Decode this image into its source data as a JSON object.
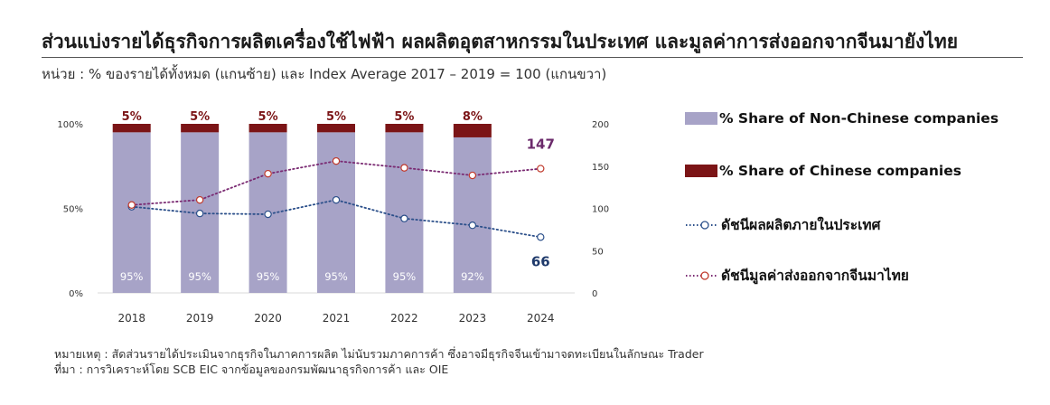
{
  "title": "ส่วนแบ่งรายได้ธุรกิจการผลิตเครื่องใช้ไฟฟ้า ผลผลิตอุตสาหกรรมในประเทศ และมูลค่าการส่งออกจากจีนมายังไทย",
  "subtitle": "หน่วย : % ของรายได้ทั้งหมด (แกนซ้าย) และ Index Average 2017 – 2019 = 100 (แกนขวา)",
  "colors": {
    "non_chinese": "#a7a3c7",
    "chinese": "#7b1416",
    "domestic_line": "#2b4f8a",
    "export_line": "#7a2a72",
    "label_domestic": "#1f3a6b",
    "label_export": "#6b2a6b"
  },
  "legend": [
    {
      "label": "% Share of Non-Chinese companies",
      "icon": "swatch",
      "color": "#a7a3c7"
    },
    {
      "label": "% Share of Chinese companies",
      "icon": "swatch",
      "color": "#7b1416"
    },
    {
      "label": "ดัชนีผลผลิตภายในประเทศ",
      "icon": "dotted-line-circle",
      "color": "#2b4f8a"
    },
    {
      "label": "ดัชนีมูลค่าส่งออกจากจีนมาไทย",
      "icon": "dotted-line-circle",
      "color": "#7a2a72"
    }
  ],
  "notes": {
    "remark": "หมายเหตุ : สัดส่วนรายได้ประเมินจากธุรกิจในภาคการผลิต ไม่นับรวมภาคการค้า ซึ่งอาจมีธุรกิจจีนเข้ามาจดทะเบียนในลักษณะ Trader",
    "source": "ที่มา : การวิเคราะห์โดย SCB EIC จากข้อมูลของกรมพัฒนาธุรกิจการค้า และ OIE"
  },
  "chart_data": {
    "type": "bar",
    "categories": [
      "2018",
      "2019",
      "2020",
      "2021",
      "2022",
      "2023",
      "2024"
    ],
    "left_axis": {
      "ticks": [
        "0%",
        "50%",
        "100%"
      ],
      "ylim": [
        0,
        100
      ]
    },
    "right_axis": {
      "ticks": [
        "0",
        "50",
        "100",
        "150",
        "200"
      ],
      "ylim": [
        0,
        200
      ]
    },
    "bars": {
      "stacked": true,
      "series": [
        {
          "name": "% Share of Non-Chinese companies",
          "values": [
            95,
            95,
            95,
            95,
            95,
            92
          ],
          "labels": [
            "95%",
            "95%",
            "95%",
            "95%",
            "95%",
            "92%"
          ]
        },
        {
          "name": "% Share of Chinese companies",
          "values": [
            5,
            5,
            5,
            5,
            5,
            8
          ],
          "labels": [
            "5%",
            "5%",
            "5%",
            "5%",
            "5%",
            "8%"
          ]
        }
      ]
    },
    "lines": [
      {
        "name": "ดัชนีผลผลิตภายในประเทศ",
        "axis": "right",
        "values": [
          102,
          94,
          93,
          110,
          88,
          80,
          66
        ],
        "end_label": "66"
      },
      {
        "name": "ดัชนีมูลค่าส่งออกจากจีนมาไทย",
        "axis": "right",
        "values": [
          104,
          110,
          141,
          156,
          148,
          139,
          147
        ],
        "end_label": "147"
      }
    ],
    "grid": false,
    "legend_position": "right"
  }
}
